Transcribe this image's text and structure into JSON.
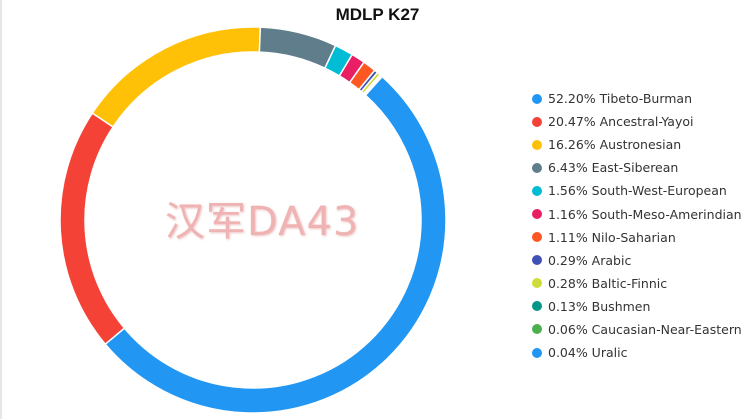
{
  "chart_data": {
    "type": "pie",
    "variant": "donut",
    "title": "MDLP K27",
    "legend_position": "right",
    "slices": [
      {
        "label": "Tibeto-Burman",
        "value": 52.2,
        "display": "52.20%",
        "color": "#2196f3"
      },
      {
        "label": "Ancestral-Yayoi",
        "value": 20.47,
        "display": "20.47%",
        "color": "#f44336"
      },
      {
        "label": "Austronesian",
        "value": 16.26,
        "display": "16.26%",
        "color": "#ffc107"
      },
      {
        "label": "East-Siberean",
        "value": 6.43,
        "display": "6.43%",
        "color": "#607d8b"
      },
      {
        "label": "South-West-European",
        "value": 1.56,
        "display": "1.56%",
        "color": "#00bcd4"
      },
      {
        "label": "South-Meso-Amerindian",
        "value": 1.16,
        "display": "1.16%",
        "color": "#e91e63"
      },
      {
        "label": "Nilo-Saharian",
        "value": 1.11,
        "display": "1.11%",
        "color": "#ff5722"
      },
      {
        "label": "Arabic",
        "value": 0.29,
        "display": "0.29%",
        "color": "#3f51b5"
      },
      {
        "label": "Baltic-Finnic",
        "value": 0.28,
        "display": "0.28%",
        "color": "#cddc39"
      },
      {
        "label": "Bushmen",
        "value": 0.13,
        "display": "0.13%",
        "color": "#009688"
      },
      {
        "label": "Caucasian-Near-Eastern",
        "value": 0.06,
        "display": "0.06%",
        "color": "#4caf50"
      },
      {
        "label": "Uralic",
        "value": 0.04,
        "display": "0.04%",
        "color": "#2196f3"
      }
    ]
  },
  "watermark": "汉军DA43"
}
